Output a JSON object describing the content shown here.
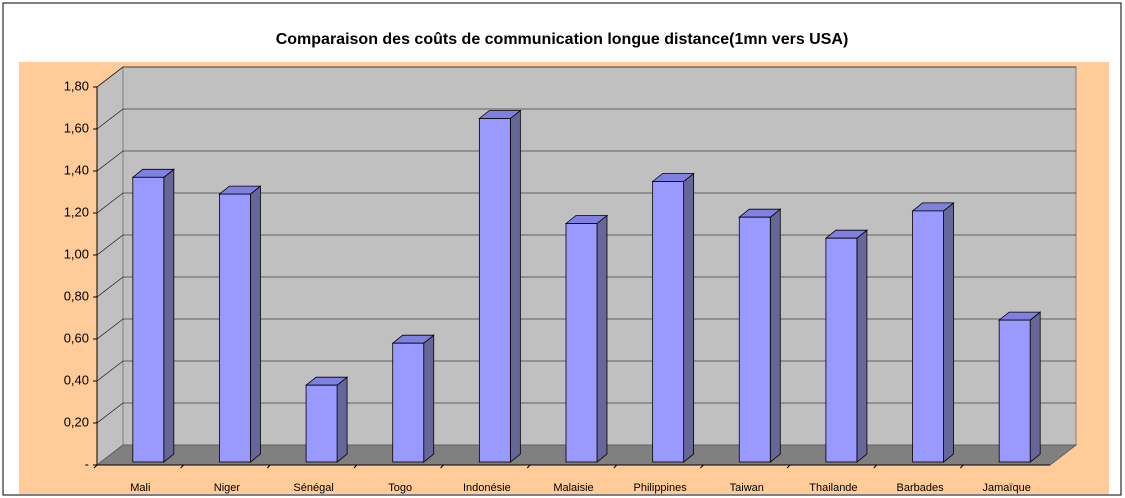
{
  "chart_data": {
    "type": "bar3d",
    "title": "Comparaison des coûts de communication longue distance(1mn vers USA)",
    "categories": [
      "Mali",
      "Niger",
      "Sénégal",
      "Togo",
      "Indonésie",
      "Malaisie",
      "Philippines",
      "Taiwan",
      "Thailande",
      "Barbades",
      "Jamaïque"
    ],
    "values": [
      1.37,
      1.29,
      0.38,
      0.58,
      1.65,
      1.15,
      1.35,
      1.18,
      1.08,
      1.21,
      0.69
    ],
    "color": "#9999ff",
    "ylim": [
      0,
      1.8
    ],
    "yticks": [
      {
        "value": 0,
        "label": "-"
      },
      {
        "value": 0.2,
        "label": "0,20"
      },
      {
        "value": 0.4,
        "label": "0,40"
      },
      {
        "value": 0.6,
        "label": "0,60"
      },
      {
        "value": 0.8,
        "label": "0,80"
      },
      {
        "value": 1,
        "label": "1,00"
      },
      {
        "value": 1.2,
        "label": "1,20"
      },
      {
        "value": 1.4,
        "label": "1,40"
      },
      {
        "value": 1.6,
        "label": "1,60"
      },
      {
        "value": 1.8,
        "label": "1,80"
      }
    ],
    "grid": true
  }
}
